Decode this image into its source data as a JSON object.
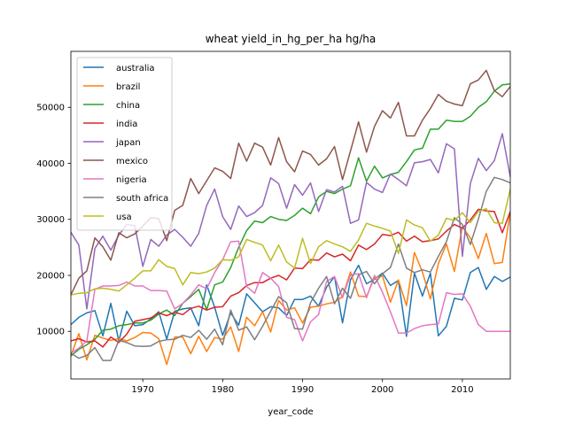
{
  "chart_data": {
    "type": "line",
    "title": "wheat yield_in_hg_per_ha hg/ha",
    "xlabel": "year_code",
    "ylabel": "",
    "xlim": [
      1961,
      2016
    ],
    "ylim": [
      1500,
      60000
    ],
    "xticks": [
      1970,
      1980,
      1990,
      2000,
      2010
    ],
    "yticks": [
      10000,
      20000,
      30000,
      40000,
      50000
    ],
    "legend_position": "top-left",
    "x": [
      1961,
      1962,
      1963,
      1964,
      1965,
      1966,
      1967,
      1968,
      1969,
      1970,
      1971,
      1972,
      1973,
      1974,
      1975,
      1976,
      1977,
      1978,
      1979,
      1980,
      1981,
      1982,
      1983,
      1984,
      1985,
      1986,
      1987,
      1988,
      1989,
      1990,
      1991,
      1992,
      1993,
      1994,
      1995,
      1996,
      1997,
      1998,
      1999,
      2000,
      2001,
      2002,
      2003,
      2004,
      2005,
      2006,
      2007,
      2008,
      2009,
      2010,
      2011,
      2012,
      2013,
      2014,
      2015,
      2016
    ],
    "series": [
      {
        "name": "australia",
        "color": "#1f77b4",
        "values": [
          11200,
          12500,
          13300,
          13700,
          9200,
          15000,
          8300,
          13600,
          11000,
          11200,
          12200,
          13500,
          8600,
          13600,
          14000,
          14200,
          11000,
          18300,
          14300,
          9300,
          13300,
          11100,
          16700,
          15100,
          13500,
          14400,
          14200,
          12800,
          15700,
          15700,
          16300,
          14500,
          17900,
          19800,
          11500,
          19200,
          21800,
          18500,
          19300,
          20400,
          18200,
          19100,
          9100,
          20400,
          16300,
          20400,
          9200,
          10900,
          15900,
          15600,
          20500,
          21400,
          17500,
          19800,
          18900,
          19700
        ]
      },
      {
        "name": "brazil",
        "color": "#ff7f0e",
        "values": [
          5600,
          9600,
          4900,
          9300,
          8800,
          8400,
          8700,
          8300,
          8900,
          9800,
          9700,
          8700,
          4100,
          9000,
          9000,
          6000,
          9100,
          6400,
          8900,
          8600,
          10800,
          6400,
          12500,
          11000,
          13500,
          9900,
          15500,
          13800,
          14200,
          11500,
          14300,
          14500,
          14900,
          15200,
          16200,
          20600,
          16300,
          16200,
          19600,
          19900,
          15200,
          19200,
          14600,
          24100,
          20600,
          15800,
          22100,
          25600,
          20700,
          28700,
          26700,
          23000,
          27500,
          22100,
          22300,
          31300
        ]
      },
      {
        "name": "china",
        "color": "#2ca02c",
        "values": [
          5600,
          6800,
          7600,
          8600,
          10200,
          10400,
          11000,
          11200,
          11500,
          11500,
          12000,
          13100,
          13800,
          12800,
          15000,
          16200,
          17500,
          13900,
          18300,
          18800,
          21400,
          25000,
          28000,
          29700,
          29400,
          30500,
          30000,
          29800,
          30700,
          32000,
          31000,
          34000,
          35000,
          34600,
          35400,
          36000,
          41000,
          36800,
          39500,
          37400,
          38000,
          38400,
          40300,
          42400,
          42700,
          46100,
          46100,
          47700,
          47500,
          47500,
          48400,
          50000,
          51000,
          52900,
          54000,
          54200
        ]
      },
      {
        "name": "india",
        "color": "#d62728",
        "values": [
          8300,
          8700,
          8100,
          8300,
          7200,
          9000,
          8000,
          9500,
          11800,
          12100,
          12400,
          13300,
          12800,
          13400,
          13000,
          14100,
          14500,
          13800,
          14300,
          14400,
          16300,
          16900,
          18200,
          18700,
          18700,
          19500,
          20000,
          19200,
          21300,
          21200,
          22800,
          22700,
          24000,
          23300,
          23800,
          22600,
          25400,
          24600,
          25600,
          27300,
          27100,
          27700,
          26100,
          27000,
          26000,
          26200,
          26500,
          27900,
          29100,
          28400,
          29900,
          31800,
          31500,
          31400,
          27600,
          31400
        ]
      },
      {
        "name": "japan",
        "color": "#9467bd",
        "values": [
          27700,
          25400,
          14000,
          24800,
          27000,
          24500,
          27200,
          29100,
          28900,
          21600,
          26400,
          25200,
          27200,
          28200,
          26800,
          25200,
          27500,
          32500,
          35400,
          30500,
          28200,
          32400,
          30500,
          31200,
          32500,
          37400,
          36400,
          32000,
          36200,
          34300,
          36500,
          31400,
          35300,
          34900,
          35900,
          29300,
          29900,
          36600,
          35400,
          34800,
          38100,
          37100,
          36000,
          40100,
          40300,
          40700,
          38300,
          43500,
          42600,
          23400,
          36400,
          40900,
          38700,
          40500,
          45300,
          37600
        ]
      },
      {
        "name": "mexico",
        "color": "#8c564b",
        "values": [
          16500,
          19500,
          20800,
          26700,
          25100,
          22700,
          27600,
          26700,
          27400,
          28800,
          30300,
          30100,
          26200,
          31600,
          32500,
          37300,
          34600,
          36900,
          39200,
          38600,
          37300,
          43600,
          40400,
          43600,
          42900,
          39700,
          44600,
          40300,
          38500,
          42200,
          41600,
          39700,
          40800,
          43000,
          37100,
          42200,
          47400,
          42000,
          46600,
          49400,
          48100,
          50900,
          44900,
          44900,
          47700,
          49800,
          52300,
          51100,
          50600,
          50300,
          54200,
          54900,
          56600,
          53000,
          51900,
          53700
        ]
      },
      {
        "name": "nigeria",
        "color": "#e377c2",
        "values": [
          6100,
          7000,
          8300,
          17500,
          18100,
          18100,
          18200,
          18800,
          18100,
          18100,
          17300,
          17300,
          17200,
          14000,
          15000,
          16500,
          18300,
          17600,
          20500,
          22800,
          26000,
          26100,
          18000,
          16800,
          20500,
          19500,
          18000,
          12500,
          12100,
          8300,
          11700,
          13000,
          18900,
          19800,
          16000,
          20100,
          20300,
          16000,
          20000,
          17000,
          13500,
          9700,
          9700,
          10500,
          11000,
          11200,
          11300,
          16900,
          16600,
          16700,
          14500,
          11200,
          10000,
          10000,
          10000,
          10000
        ]
      },
      {
        "name": "south africa",
        "color": "#7f7f7f",
        "values": [
          6100,
          5200,
          5700,
          7100,
          4800,
          4800,
          8400,
          8000,
          7400,
          7300,
          7400,
          8200,
          8500,
          8600,
          9300,
          8900,
          10200,
          8600,
          10400,
          7600,
          13800,
          10200,
          10800,
          8500,
          10900,
          13600,
          16200,
          15100,
          10500,
          10400,
          15100,
          17700,
          19800,
          14900,
          17700,
          15900,
          20100,
          20700,
          18500,
          20300,
          21400,
          25600,
          21300,
          20500,
          21000,
          20600,
          23400,
          26000,
          30300,
          29100,
          25500,
          30000,
          35000,
          37500,
          37100,
          36500
        ]
      },
      {
        "name": "usa",
        "color": "#bcbd22",
        "values": [
          16500,
          16800,
          16900,
          17600,
          17700,
          17500,
          17200,
          18300,
          19500,
          20800,
          20800,
          22800,
          21600,
          21200,
          18300,
          20500,
          20300,
          20600,
          21300,
          22800,
          22700,
          23300,
          26400,
          25900,
          25400,
          22600,
          25400,
          22400,
          21300,
          26600,
          22100,
          25100,
          26200,
          25600,
          25100,
          24300,
          26300,
          29300,
          28800,
          28400,
          27900,
          23900,
          29900,
          29000,
          28500,
          26100,
          27200,
          30200,
          29800,
          31200,
          29400,
          31400,
          31900,
          29400,
          29300,
          35400
        ]
      }
    ]
  }
}
